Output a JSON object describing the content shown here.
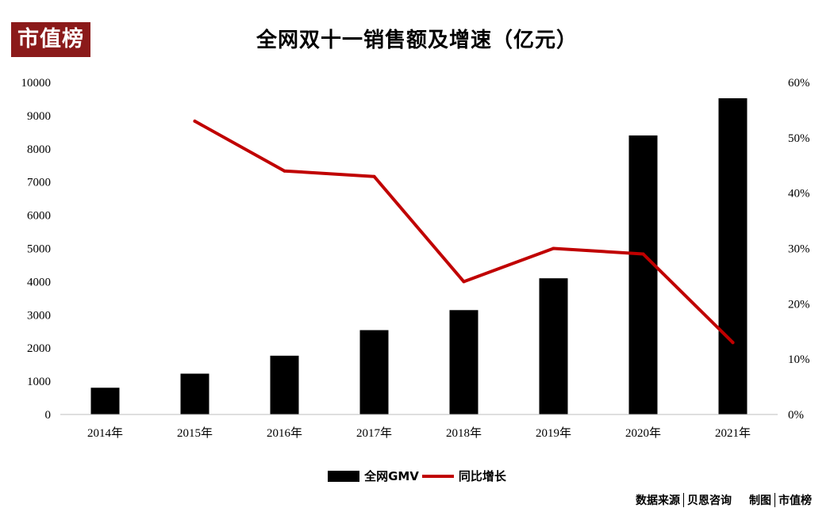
{
  "logo_text": "市值榜",
  "chart_data": {
    "type": "bar",
    "title": "全网双十一销售额及增速（亿元）",
    "categories": [
      "2014年",
      "2015年",
      "2016年",
      "2017年",
      "2018年",
      "2019年",
      "2020年",
      "2021年"
    ],
    "series": [
      {
        "name": "全网GMV",
        "type": "bar",
        "axis": "left",
        "color": "#000000",
        "values": [
          805,
          1229,
          1770,
          2540,
          3143,
          4101,
          8403,
          9523
        ]
      },
      {
        "name": "同比增长",
        "type": "line",
        "axis": "right",
        "color": "#c00000",
        "values": [
          null,
          0.53,
          0.44,
          0.43,
          0.24,
          0.3,
          0.29,
          0.13
        ]
      }
    ],
    "y_left": {
      "min": 0,
      "max": 10000,
      "ticks": [
        "0",
        "1000",
        "2000",
        "3000",
        "4000",
        "5000",
        "6000",
        "7000",
        "8000",
        "9000",
        "10000"
      ]
    },
    "y_right": {
      "min": 0,
      "max": 0.6,
      "ticks": [
        "0%",
        "10%",
        "20%",
        "30%",
        "40%",
        "50%",
        "60%"
      ]
    },
    "grid": false,
    "legend_position": "bottom"
  },
  "source": {
    "label": "数据来源",
    "org": "贝恩咨询",
    "made_label": "制图",
    "made_by": "市值榜"
  }
}
